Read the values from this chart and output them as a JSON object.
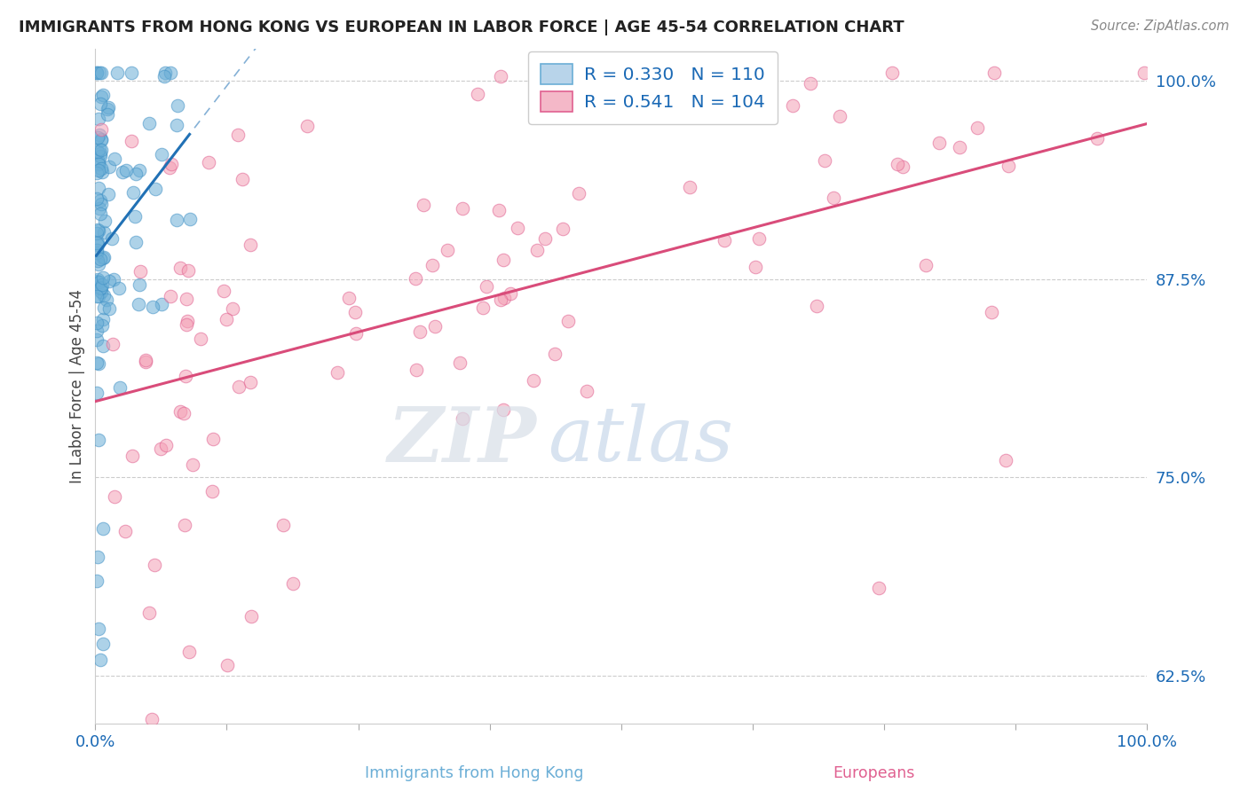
{
  "title": "IMMIGRANTS FROM HONG KONG VS EUROPEAN IN LABOR FORCE | AGE 45-54 CORRELATION CHART",
  "source": "Source: ZipAtlas.com",
  "ylabel": "In Labor Force | Age 45-54",
  "ytick_labels": [
    "100.0%",
    "87.5%",
    "75.0%",
    "62.5%"
  ],
  "ytick_values": [
    1.0,
    0.875,
    0.75,
    0.625
  ],
  "xrange": [
    0.0,
    1.0
  ],
  "yrange": [
    0.595,
    1.02
  ],
  "blue_R": 0.33,
  "blue_N": 110,
  "pink_R": 0.541,
  "pink_N": 104,
  "blue_color": "#6baed6",
  "blue_edge_color": "#4292c6",
  "blue_line_color": "#2171b5",
  "pink_color": "#f4a0b5",
  "pink_edge_color": "#e06090",
  "pink_line_color": "#d94c7a",
  "legend_blue_color": "#b8d4ea",
  "legend_pink_color": "#f4b8c8",
  "watermark_zip_color": "#d0d8e8",
  "watermark_atlas_color": "#b8cce4"
}
